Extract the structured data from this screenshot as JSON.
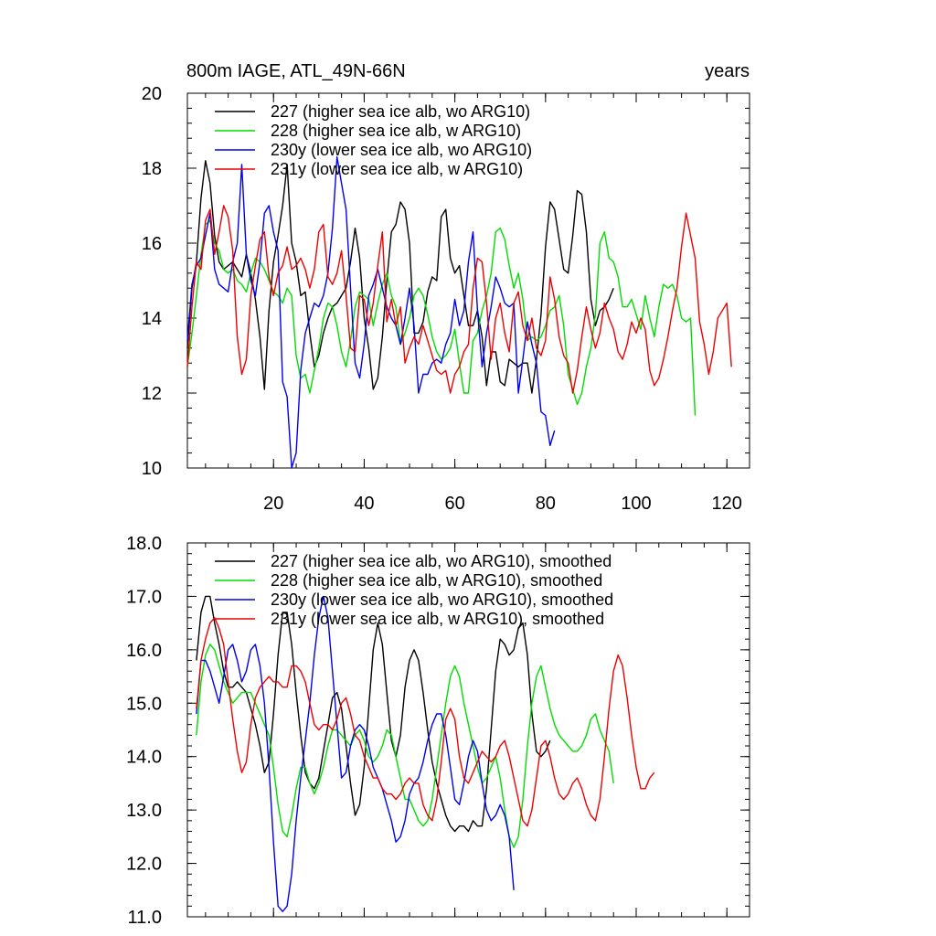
{
  "figure": {
    "title_left": "800m IAGE, ATL_49N-66N",
    "title_right": "years"
  },
  "chart_data": [
    {
      "type": "line",
      "xlim": [
        1,
        125
      ],
      "ylim": [
        10,
        20
      ],
      "x_ticks": [
        20,
        40,
        60,
        80,
        100,
        120
      ],
      "y_ticks": [
        10,
        12,
        14,
        16,
        18,
        20
      ],
      "y_tick_labels": [
        "10",
        "12",
        "14",
        "16",
        "18",
        "20"
      ],
      "show_x_tick_labels": true,
      "legend_position": "top-left",
      "series": [
        {
          "name": "227 (higher sea ice alb, wo ARG10)",
          "color": "#000000",
          "x_start": 1,
          "values": [
            13.2,
            14.8,
            15.5,
            17.2,
            18.2,
            17.6,
            16.2,
            15.5,
            15.3,
            15.4,
            15.5,
            15.3,
            15.1,
            15.7,
            15.2,
            14.5,
            13.5,
            12.1,
            14.2,
            15.5,
            16.2,
            17.0,
            18.1,
            16.0,
            15.5,
            14.6,
            14.7,
            13.6,
            12.7,
            13.0,
            13.6,
            14.0,
            14.3,
            14.4,
            14.6,
            14.8,
            15.5,
            16.4,
            15.6,
            14.0,
            13.2,
            12.1,
            12.4,
            13.5,
            15.0,
            16.3,
            16.5,
            17.1,
            16.9,
            16.0,
            13.6,
            13.6,
            13.9,
            14.7,
            15.1,
            15.0,
            16.7,
            16.9,
            15.6,
            15.2,
            15.4,
            14.6,
            13.8,
            13.8,
            14.2,
            13.5,
            12.2,
            13.1,
            13.1,
            12.3,
            12.2,
            12.9,
            12.8,
            12.7,
            12.8,
            12.8,
            12.0,
            12.9,
            14.1,
            15.9,
            17.1,
            16.9,
            16.1,
            15.3,
            15.2,
            16.2,
            17.4,
            17.3,
            16.3,
            14.5,
            13.8,
            14.2,
            14.3,
            14.5,
            14.8
          ]
        },
        {
          "name": "228 (higher sea ice alb, w ARG10)",
          "color": "#00dd00",
          "x_start": 1,
          "values": [
            12.7,
            13.6,
            14.6,
            15.7,
            16.5,
            16.6,
            16.0,
            15.8,
            15.3,
            15.2,
            15.3,
            15.0,
            14.9,
            14.7,
            15.2,
            15.6,
            15.5,
            15.3,
            15.0,
            14.7,
            14.6,
            14.4,
            14.8,
            14.6,
            13.0,
            12.4,
            12.5,
            12.0,
            12.6,
            13.2,
            14.0,
            14.4,
            14.3,
            13.8,
            13.1,
            12.7,
            13.4,
            14.3,
            14.7,
            14.6,
            14.5,
            13.8,
            14.4,
            14.9,
            15.2,
            14.6,
            14.3,
            13.3,
            13.6,
            14.0,
            14.6,
            14.8,
            14.6,
            14.1,
            13.5,
            13.1,
            12.9,
            13.0,
            13.2,
            13.7,
            12.8,
            12.0,
            12.0,
            13.4,
            13.6,
            14.2,
            14.6,
            15.2,
            16.3,
            16.4,
            16.1,
            15.4,
            14.8,
            15.2,
            14.5,
            13.4,
            13.5,
            13.4,
            13.5,
            13.8,
            14.2,
            14.3,
            14.6,
            13.8,
            12.5,
            12.1,
            11.7,
            12.0,
            12.7,
            13.2,
            14.1,
            16.0,
            16.3,
            15.6,
            15.5,
            15.1,
            14.3,
            14.3,
            14.5,
            14.1,
            13.7,
            14.6,
            14.0,
            13.5,
            14.3,
            14.9,
            14.8,
            14.9,
            14.6,
            14.0,
            13.9,
            14.0,
            11.4
          ]
        },
        {
          "name": "230y (lower sea ice alb, wo ARG10)",
          "color": "#0000ee",
          "x_start": 1,
          "values": [
            13.4,
            14.9,
            15.4,
            15.6,
            16.2,
            16.8,
            15.3,
            14.9,
            14.8,
            14.7,
            15.5,
            16.0,
            18.1,
            15.7,
            15.0,
            14.6,
            15.5,
            16.8,
            17.0,
            16.3,
            15.8,
            12.3,
            11.9,
            10.0,
            10.4,
            12.6,
            13.6,
            14.0,
            14.4,
            14.3,
            14.6,
            15.2,
            16.4,
            18.3,
            17.6,
            16.9,
            14.8,
            12.8,
            12.4,
            13.3,
            14.6,
            14.9,
            15.3,
            14.8,
            14.3,
            14.0,
            13.8,
            13.3,
            14.0,
            14.8,
            13.8,
            12.0,
            12.5,
            12.5,
            12.8,
            12.9,
            12.8,
            13.3,
            13.6,
            14.5,
            13.8,
            14.2,
            15.5,
            16.3,
            14.2,
            12.7,
            13.6,
            14.3,
            15.1,
            14.8,
            14.4,
            14.3,
            14.4,
            12.0,
            12.9,
            13.9,
            13.3,
            12.8,
            11.5,
            11.4,
            10.6,
            11.0
          ]
        },
        {
          "name": "231y (lower sea ice alb, w ARG10)",
          "color": "#ee0000",
          "x_start": 1,
          "values": [
            12.7,
            14.3,
            15.5,
            15.3,
            16.6,
            16.9,
            15.7,
            16.3,
            17.0,
            16.7,
            15.8,
            13.5,
            12.5,
            12.9,
            14.6,
            15.4,
            16.1,
            16.3,
            15.1,
            14.6,
            15.2,
            15.4,
            15.9,
            15.3,
            15.4,
            15.6,
            15.3,
            14.8,
            15.3,
            16.3,
            16.5,
            15.1,
            14.9,
            15.2,
            15.8,
            14.6,
            13.2,
            13.1,
            14.6,
            14.5,
            13.8,
            14.4,
            15.4,
            16.3,
            13.9,
            14.5,
            13.8,
            14.3,
            12.8,
            13.2,
            13.5,
            13.3,
            13.8,
            13.4,
            13.0,
            12.6,
            12.5,
            12.6,
            12.0,
            12.5,
            12.7,
            13.1,
            13.3,
            14.8,
            15.6,
            15.5,
            14.4,
            12.9,
            14.0,
            14.4,
            13.6,
            13.1,
            14.4,
            14.7,
            13.8,
            13.4,
            14.0,
            13.2,
            13.0,
            13.4,
            15.1,
            14.5,
            13.5,
            13.0,
            12.8,
            12.0,
            12.6,
            13.5,
            14.3,
            13.7,
            13.2,
            13.6,
            14.4,
            14.0,
            13.7,
            13.1,
            12.9,
            13.3,
            13.9,
            13.6,
            14.0,
            13.7,
            12.6,
            12.2,
            12.4,
            12.9,
            13.5,
            14.2,
            14.8,
            15.9,
            16.8,
            16.2,
            15.6,
            13.9,
            13.3,
            12.5,
            13.1,
            14.0,
            14.2,
            14.4,
            12.7
          ]
        }
      ]
    },
    {
      "type": "line",
      "xlim": [
        1,
        125
      ],
      "ylim": [
        11,
        18
      ],
      "x_ticks": [
        20,
        40,
        60,
        80,
        100,
        120
      ],
      "y_ticks": [
        11,
        12,
        13,
        14,
        15,
        16,
        17,
        18
      ],
      "y_tick_labels": [
        "11.0",
        "12.0",
        "13.0",
        "14.0",
        "15.0",
        "16.0",
        "17.0",
        "18.0"
      ],
      "show_x_tick_labels": false,
      "legend_position": "top-left",
      "series": [
        {
          "name": "227 (higher sea ice alb, wo ARG10), smoothed",
          "color": "#000000",
          "x_start": 3,
          "values": [
            15.8,
            16.7,
            17.0,
            17.0,
            16.5,
            16.1,
            15.6,
            15.3,
            15.3,
            15.4,
            15.3,
            15.2,
            14.9,
            14.6,
            14.2,
            13.7,
            13.9,
            14.8,
            15.9,
            16.7,
            16.7,
            16.1,
            15.2,
            14.4,
            13.7,
            13.5,
            13.4,
            13.6,
            14.1,
            14.6,
            15.1,
            15.2,
            14.9,
            14.2,
            13.5,
            12.9,
            13.1,
            13.8,
            14.9,
            16.0,
            16.5,
            16.1,
            15.2,
            14.3,
            14.0,
            14.4,
            15.3,
            15.8,
            16.0,
            15.8,
            15.2,
            14.5,
            13.9,
            13.5,
            13.2,
            12.9,
            12.7,
            12.6,
            12.7,
            12.7,
            12.6,
            12.8,
            12.7,
            12.7,
            13.4,
            14.5,
            15.6,
            16.2,
            16.1,
            15.9,
            16.0,
            16.4,
            16.5,
            15.9,
            14.8,
            14.1,
            14.0,
            14.1,
            14.3
          ]
        },
        {
          "name": "228 (higher sea ice alb, w ARG10), smoothed",
          "color": "#00dd00",
          "x_start": 3,
          "values": [
            14.4,
            15.4,
            15.9,
            16.1,
            16.0,
            15.7,
            15.4,
            15.2,
            15.0,
            15.1,
            15.2,
            15.2,
            15.2,
            15.0,
            14.8,
            14.6,
            14.4,
            13.8,
            13.1,
            12.6,
            12.5,
            12.9,
            13.4,
            13.8,
            13.8,
            13.5,
            13.3,
            13.5,
            13.8,
            14.2,
            14.5,
            14.5,
            14.4,
            14.3,
            14.2,
            14.4,
            14.5,
            14.3,
            14.0,
            13.9,
            14.0,
            14.2,
            14.5,
            14.4,
            14.0,
            13.6,
            13.2,
            13.2,
            13.0,
            12.8,
            12.7,
            12.8,
            13.2,
            13.8,
            14.4,
            15.0,
            15.5,
            15.7,
            15.5,
            15.0,
            14.6,
            14.2,
            13.8,
            13.5,
            13.6,
            13.8,
            14.0,
            13.6,
            13.0,
            12.5,
            12.3,
            12.5,
            13.2,
            14.2,
            15.0,
            15.5,
            15.7,
            15.3,
            14.9,
            14.6,
            14.4,
            14.3,
            14.2,
            14.1,
            14.1,
            14.2,
            14.4,
            14.7,
            14.8,
            14.5,
            14.3,
            14.1,
            13.5
          ]
        },
        {
          "name": "230y (lower sea ice alb, wo ARG10), smoothed",
          "color": "#0000ee",
          "x_start": 3,
          "values": [
            14.8,
            15.8,
            15.8,
            15.6,
            15.3,
            15.0,
            15.5,
            16.0,
            16.1,
            15.8,
            15.4,
            15.6,
            16.0,
            16.1,
            15.7,
            15.0,
            13.8,
            12.4,
            11.2,
            11.1,
            11.2,
            11.8,
            12.8,
            13.6,
            14.3,
            15.0,
            15.9,
            16.6,
            17.0,
            16.6,
            15.6,
            14.6,
            13.6,
            13.7,
            14.2,
            14.5,
            14.6,
            14.5,
            14.2,
            13.8,
            13.6,
            13.4,
            13.1,
            12.8,
            12.4,
            12.5,
            12.8,
            13.3,
            13.5,
            13.6,
            13.9,
            14.3,
            14.6,
            14.8,
            14.8,
            14.4,
            13.8,
            13.2,
            13.1,
            13.5,
            14.0,
            14.3,
            14.1,
            13.5,
            13.0,
            12.8,
            12.9,
            13.1,
            12.9,
            12.5,
            11.5
          ]
        },
        {
          "name": "231y (lower sea ice alb, w ARG10), smoothed",
          "color": "#ee0000",
          "x_start": 3,
          "values": [
            14.9,
            15.8,
            16.2,
            16.5,
            16.6,
            16.4,
            16.1,
            15.4,
            14.7,
            14.1,
            13.7,
            13.9,
            14.6,
            15.1,
            15.3,
            15.4,
            15.5,
            15.4,
            15.4,
            15.3,
            15.3,
            15.7,
            15.7,
            15.6,
            15.4,
            15.0,
            14.6,
            14.5,
            14.6,
            14.6,
            14.5,
            14.7,
            15.0,
            15.1,
            14.8,
            14.4,
            14.3,
            14.0,
            13.8,
            13.6,
            13.6,
            13.4,
            13.3,
            13.3,
            13.2,
            13.3,
            13.5,
            13.6,
            13.5,
            13.5,
            13.1,
            12.9,
            12.8,
            13.2,
            13.9,
            14.7,
            14.9,
            14.7,
            14.0,
            13.6,
            13.5,
            13.7,
            13.9,
            14.1,
            14.0,
            13.9,
            14.0,
            14.2,
            14.3,
            14.0,
            13.6,
            13.2,
            12.8,
            12.7,
            13.0,
            13.6,
            14.2,
            14.3,
            14.0,
            13.6,
            13.3,
            13.2,
            13.3,
            13.5,
            13.6,
            13.4,
            13.1,
            12.9,
            12.8,
            13.2,
            14.0,
            14.9,
            15.6,
            15.9,
            15.7,
            15.1,
            14.4,
            13.8,
            13.4,
            13.4,
            13.6,
            13.7
          ]
        }
      ]
    }
  ]
}
